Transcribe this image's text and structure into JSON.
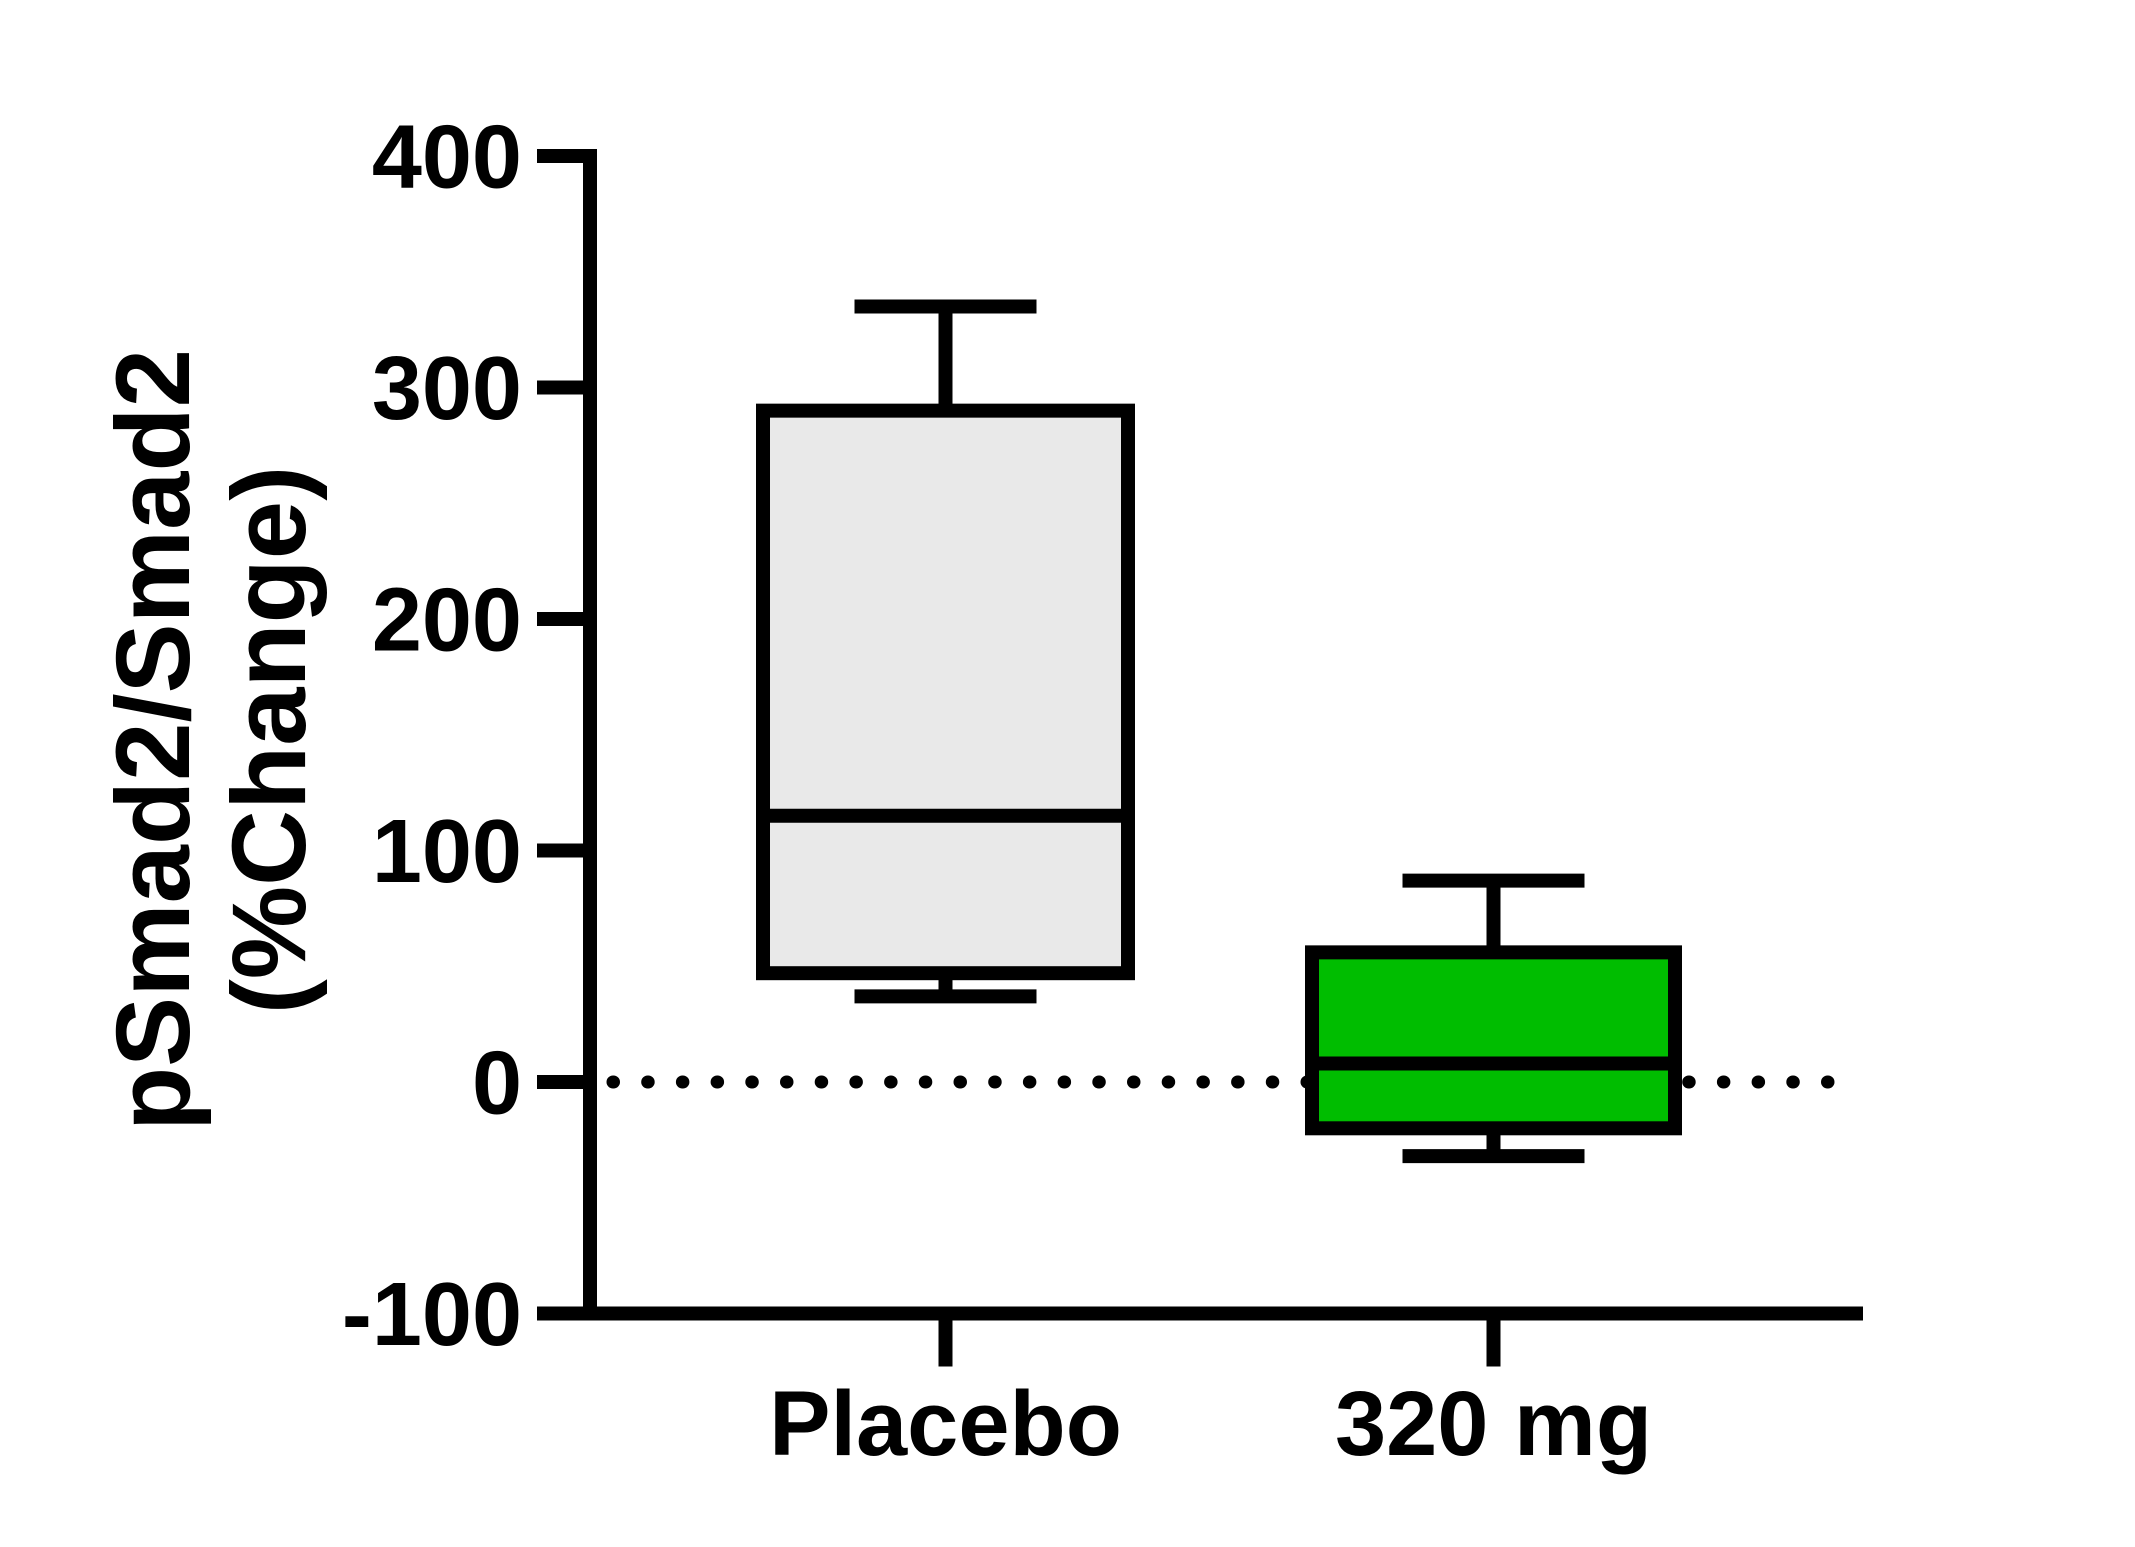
{
  "figure": {
    "background_color": "#FFFFFF",
    "axis_color": "#000000"
  },
  "chart_data": {
    "type": "box",
    "title": "",
    "xlabel": "",
    "ylabel": "pSmad2/Smad2 (%Change)",
    "ylabel_lines": [
      "pSmad2/Smad2",
      "(%Change)"
    ],
    "categories": [
      "Placebo",
      "320 mg"
    ],
    "y_tick_labels": [
      "400",
      "300",
      "200",
      "100",
      "0",
      "-100"
    ],
    "y_tick_values": [
      400,
      300,
      200,
      100,
      0,
      -100
    ],
    "ylim": [
      -100,
      400
    ],
    "grid": false,
    "legend": false,
    "reference_line": {
      "y": 0,
      "style": "dotted",
      "color": "#000000"
    },
    "series": [
      {
        "name": "Placebo",
        "whisker_min": 37,
        "q1": 47,
        "median": 115,
        "q3": 290,
        "whisker_max": 335,
        "fill_color": "#E9E9E9",
        "border_color": "#000000"
      },
      {
        "name": "320 mg",
        "whisker_min": -32,
        "q1": -20,
        "median": 8,
        "q3": 56,
        "whisker_max": 87,
        "fill_color": "#00BD00",
        "border_color": "#000000"
      }
    ]
  }
}
